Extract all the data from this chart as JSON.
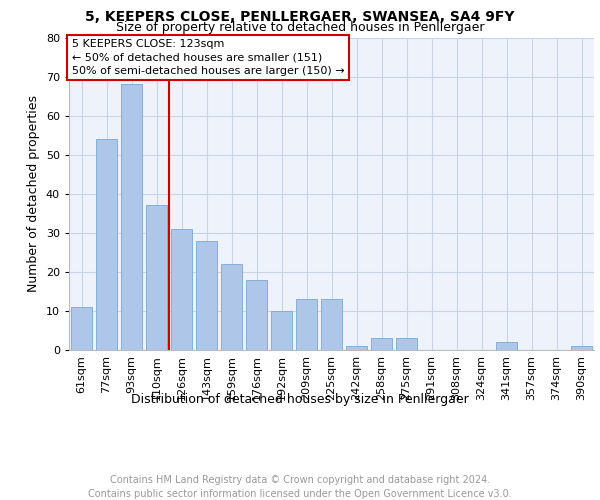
{
  "title": "5, KEEPERS CLOSE, PENLLERGAER, SWANSEA, SA4 9FY",
  "subtitle": "Size of property relative to detached houses in Penllergaer",
  "xlabel": "Distribution of detached houses by size in Penllergaer",
  "ylabel": "Number of detached properties",
  "categories": [
    "61sqm",
    "77sqm",
    "93sqm",
    "110sqm",
    "126sqm",
    "143sqm",
    "159sqm",
    "176sqm",
    "192sqm",
    "209sqm",
    "225sqm",
    "242sqm",
    "258sqm",
    "275sqm",
    "291sqm",
    "308sqm",
    "324sqm",
    "341sqm",
    "357sqm",
    "374sqm",
    "390sqm"
  ],
  "values": [
    11,
    54,
    68,
    37,
    31,
    28,
    22,
    18,
    10,
    13,
    13,
    1,
    3,
    3,
    0,
    0,
    0,
    2,
    0,
    0,
    1
  ],
  "bar_color": "#aec6e8",
  "bar_edge_color": "#7aa8d4",
  "vline_color": "#cc0000",
  "annotation_box_text": "5 KEEPERS CLOSE: 123sqm\n← 50% of detached houses are smaller (151)\n50% of semi-detached houses are larger (150) →",
  "annotation_box_color": "#cc0000",
  "grid_color": "#c8d4e8",
  "ylim": [
    0,
    80
  ],
  "yticks": [
    0,
    10,
    20,
    30,
    40,
    50,
    60,
    70,
    80
  ],
  "footer_line1": "Contains HM Land Registry data © Crown copyright and database right 2024.",
  "footer_line2": "Contains public sector information licensed under the Open Government Licence v3.0.",
  "background_color": "#eef2fa",
  "title_fontsize": 10,
  "subtitle_fontsize": 9,
  "xlabel_fontsize": 9,
  "ylabel_fontsize": 9,
  "tick_fontsize": 8,
  "footer_fontsize": 7,
  "annotation_fontsize": 8
}
